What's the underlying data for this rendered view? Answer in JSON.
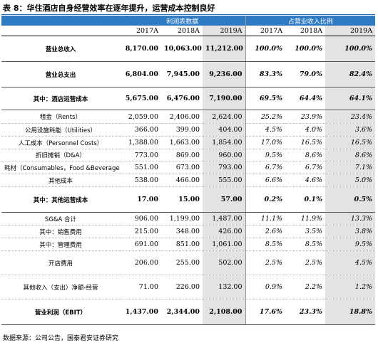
{
  "title": "表 8：华住酒店自身经营效率在逐年提升，运营成本控制良好",
  "header": {
    "groups": [
      "利润表数据",
      "占营业收入比例"
    ],
    "years": [
      "2017A",
      "2018A",
      "2019A",
      "2017A",
      "2018A",
      "2019A"
    ]
  },
  "table": {
    "rows": [
      [
        "营业总收入",
        "8,170.00",
        "10,063.00",
        "11,212.00",
        "100.0%",
        "100.0%",
        "100.0%"
      ],
      [
        "营业总支出",
        "6,804.00",
        "7,945.00",
        "9,236.00",
        "83.3%",
        "79.0%",
        "82.4%"
      ],
      [
        "其中：酒店运营成本",
        "5,675.00",
        "6,476.00",
        "7,190.00",
        "69.5%",
        "64.4%",
        "64.1%"
      ],
      [
        "租金（Rents）",
        "2,059.00",
        "2,406.00",
        "2,624.00",
        "25.2%",
        "23.9%",
        "23.4%"
      ],
      [
        "公用设施耗能（Utilities）",
        "366.00",
        "399.00",
        "404.00",
        "4.5%",
        "4.0%",
        "3.6%"
      ],
      [
        "人工成本（Personnel Costs）",
        "1,388.00",
        "1,663.00",
        "1,854.00",
        "17.0%",
        "16.5%",
        "16.5%"
      ],
      [
        "折旧摊销（D&A）",
        "773.00",
        "869.00",
        "960.00",
        "9.5%",
        "8.6%",
        "8.6%"
      ],
      [
        "耗材（Consumables，Food &Beverage）",
        "551.00",
        "673.00",
        "793.00",
        "6.7%",
        "6.7%",
        "7.1%"
      ],
      [
        "其他成本",
        "538.00",
        "466.00",
        "555.00",
        "6.6%",
        "4.6%",
        "5.0%"
      ],
      [
        "其中：其他运营成本",
        "17.00",
        "15.00",
        "57.00",
        "0.2%",
        "0.1%",
        "0.5%"
      ],
      [
        "SG&A 合计",
        "906.00",
        "1,199.00",
        "1,487.00",
        "11.1%",
        "11.9%",
        "13.3%"
      ],
      [
        "其中：销售费用",
        "215.00",
        "348.00",
        "426.00",
        "2.6%",
        "3.5%",
        "3.8%"
      ],
      [
        "其中：管理费用",
        "691.00",
        "851.00",
        "1,061.00",
        "8.5%",
        "8.5%",
        "9.5%"
      ],
      [
        "开店费用",
        "206.00",
        "255.00",
        "502.00",
        "2.5%",
        "2.5%",
        "4.5%"
      ],
      [
        "其他收入（支出）净额-经营",
        "71.00",
        "226.00",
        "132.00",
        "0.9%",
        "2.2%",
        "1.2%"
      ],
      [
        "营业利润（EBIT）",
        "1,437.00",
        "2,344.00",
        "2,108.00",
        "17.6%",
        "23.3%",
        "18.8%"
      ]
    ]
  },
  "source": "数据来源：公司公告，国泰君安证券研究"
}
